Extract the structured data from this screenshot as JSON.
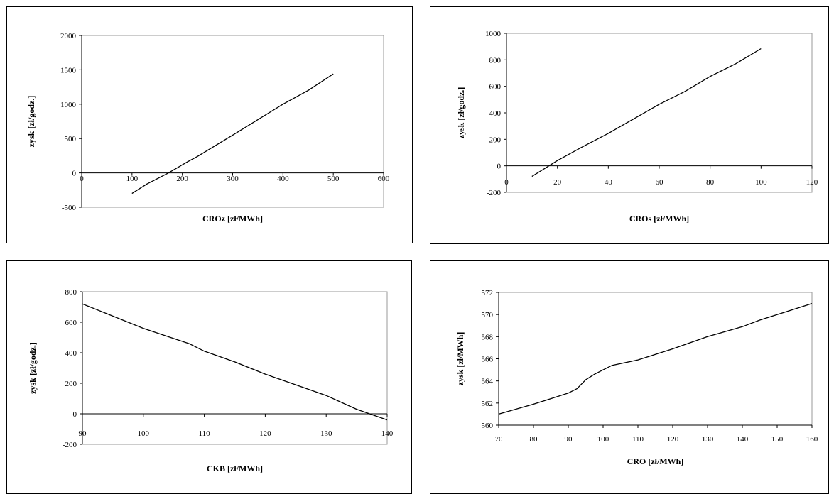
{
  "chart_data": [
    {
      "type": "line",
      "xlabel": "CROz [zł/MWh]",
      "ylabel": "zysk  [zł/godz.]",
      "xlim": [
        0,
        600
      ],
      "ylim": [
        -500,
        2000
      ],
      "xticks": [
        "0",
        "100",
        "200",
        "300",
        "400",
        "500",
        "600"
      ],
      "yticks": [
        "-500",
        "0",
        "500",
        "1000",
        "1500",
        "2000"
      ],
      "grid": false,
      "x": [
        100,
        130,
        170,
        210,
        230,
        300,
        400,
        450,
        500
      ],
      "y": [
        -300,
        -160,
        -10,
        160,
        240,
        550,
        1000,
        1200,
        1440
      ]
    },
    {
      "type": "line",
      "xlabel": "CROs [zł/MWh]",
      "ylabel": "zysk  [zł/godz.]",
      "xlim": [
        0,
        120
      ],
      "ylim": [
        -200,
        1000
      ],
      "xticks": [
        "0",
        "20",
        "40",
        "60",
        "80",
        "100",
        "120"
      ],
      "yticks": [
        "-200",
        "0",
        "200",
        "400",
        "600",
        "800",
        "1000"
      ],
      "grid": false,
      "x": [
        10,
        20,
        30,
        40,
        50,
        60,
        70,
        80,
        90,
        100
      ],
      "y": [
        -80,
        40,
        145,
        245,
        355,
        465,
        560,
        675,
        770,
        885
      ]
    },
    {
      "type": "line",
      "xlabel": "CKB [zł/MWh]",
      "ylabel": "zysk [zł/godz.]",
      "xlim": [
        90,
        140
      ],
      "ylim": [
        -200,
        800
      ],
      "xticks": [
        "90",
        "100",
        "110",
        "120",
        "130",
        "140"
      ],
      "yticks": [
        "-200",
        "0",
        "200",
        "400",
        "600",
        "800"
      ],
      "grid": false,
      "x": [
        90,
        100,
        107.5,
        110,
        115,
        120,
        125,
        130,
        135,
        140
      ],
      "y": [
        720,
        560,
        460,
        410,
        340,
        260,
        190,
        120,
        30,
        -40
      ]
    },
    {
      "type": "line",
      "xlabel": "CRO [zł/MWh]",
      "ylabel": "zysk  [zł/MWh]",
      "xlim": [
        70,
        160
      ],
      "ylim": [
        560,
        572
      ],
      "xticks": [
        "70",
        "80",
        "90",
        "100",
        "110",
        "120",
        "130",
        "140",
        "150",
        "160"
      ],
      "yticks": [
        "560",
        "562",
        "564",
        "566",
        "568",
        "570",
        "572"
      ],
      "grid": false,
      "x": [
        70,
        80,
        85,
        90,
        92.5,
        95,
        97.5,
        100,
        102.5,
        110,
        120,
        130,
        140,
        145,
        150,
        160
      ],
      "y": [
        561,
        561.9,
        562.4,
        562.9,
        563.3,
        564.1,
        564.6,
        565,
        565.4,
        565.9,
        566.9,
        568,
        568.9,
        569.5,
        570,
        571
      ]
    }
  ]
}
